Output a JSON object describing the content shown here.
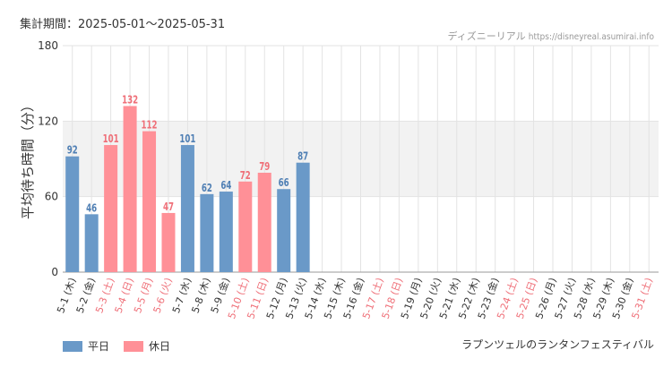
{
  "header": {
    "period": "集計期間：2025-05-01〜2025-05-31",
    "credit_name": "ディズニーリアル",
    "credit_url": "https://disneyreal.asumirai.info"
  },
  "footer": {
    "attraction": "ラプンツェルのランタンフェスティバル"
  },
  "colors": {
    "weekday": "#6a99c8",
    "holiday": "#ff9097",
    "weekday_label": "#4f7fb4",
    "holiday_label": "#ef6f78",
    "band": "#f2f2f2",
    "grid": "#e3e3e3"
  },
  "chart_data": {
    "type": "bar",
    "ylabel": "平均待ち時間（分）",
    "ylim": [
      0,
      180
    ],
    "yticks": [
      0,
      60,
      120,
      180
    ],
    "band": [
      60,
      120
    ],
    "grid": true,
    "legend_position": "bottom-left",
    "series": [
      {
        "name": "平日",
        "color": "#6a99c8"
      },
      {
        "name": "休日",
        "color": "#ff9097"
      }
    ],
    "categories": [
      "5-1 (木)",
      "5-2 (金)",
      "5-3 (土)",
      "5-4 (日)",
      "5-5 (月)",
      "5-6 (火)",
      "5-7 (水)",
      "5-8 (木)",
      "5-9 (金)",
      "5-10 (土)",
      "5-11 (日)",
      "5-12 (月)",
      "5-13 (火)",
      "5-14 (水)",
      "5-15 (木)",
      "5-16 (金)",
      "5-17 (土)",
      "5-18 (日)",
      "5-19 (月)",
      "5-20 (火)",
      "5-21 (水)",
      "5-22 (木)",
      "5-23 (金)",
      "5-24 (土)",
      "5-25 (日)",
      "5-26 (月)",
      "5-27 (火)",
      "5-28 (水)",
      "5-29 (木)",
      "5-30 (金)",
      "5-31 (土)"
    ],
    "values": [
      92,
      46,
      101,
      132,
      112,
      47,
      101,
      62,
      64,
      72,
      79,
      66,
      87,
      null,
      null,
      null,
      null,
      null,
      null,
      null,
      null,
      null,
      null,
      null,
      null,
      null,
      null,
      null,
      null,
      null,
      null
    ],
    "day_type": [
      "weekday",
      "weekday",
      "holiday",
      "holiday",
      "holiday",
      "holiday",
      "weekday",
      "weekday",
      "weekday",
      "holiday",
      "holiday",
      "weekday",
      "weekday",
      "weekday",
      "weekday",
      "weekday",
      "holiday",
      "holiday",
      "weekday",
      "weekday",
      "weekday",
      "weekday",
      "weekday",
      "holiday",
      "holiday",
      "weekday",
      "weekday",
      "weekday",
      "weekday",
      "weekday",
      "holiday"
    ]
  }
}
